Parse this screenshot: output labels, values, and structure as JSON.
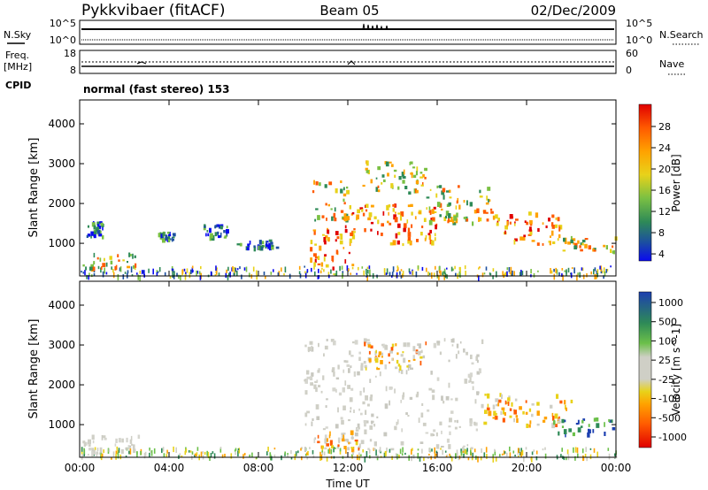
{
  "header": {
    "station": "Pykkvibaer (fitACF)",
    "beam": "Beam 05",
    "date": "02/Dec/2009"
  },
  "noise_panel": {
    "left_label": "N.Sky",
    "left_ticks": [
      "10^5",
      "10^0"
    ],
    "right_ticks": [
      "10^5",
      "10^0"
    ],
    "right_label": "N.Search"
  },
  "freq_panel": {
    "left_label_1": "Freq.",
    "left_label_2": "[MHz]",
    "left_ticks": [
      "18",
      "8"
    ],
    "right_ticks": [
      "60",
      "0"
    ],
    "right_label": "Nave"
  },
  "cpid": {
    "label": "CPID",
    "text": "normal (fast stereo) 153"
  },
  "chart_data": [
    {
      "type": "heatmap",
      "quantity": "Power",
      "ylabel": "Slant Range [km]",
      "xlabel": "",
      "ylim": [
        180,
        4600
      ],
      "yticks": [
        1000,
        2000,
        3000,
        4000
      ],
      "xticks": [
        "00:00",
        "04:00",
        "08:00",
        "12:00",
        "16:00",
        "20:00",
        "00:00"
      ],
      "colorbar": {
        "label": "Power [dB]",
        "ticks": [
          "28",
          "24",
          "20",
          "16",
          "12",
          "8",
          "4"
        ],
        "colors": [
          "#e00000",
          "#ff5a00",
          "#ffa200",
          "#e8d21a",
          "#7ac043",
          "#2e8a57",
          "#1c4fa0",
          "#0a0af0"
        ]
      },
      "regions": [
        {
          "t": [
            0.1,
            2.5
          ],
          "r": [
            400,
            800
          ],
          "level": "medium"
        },
        {
          "t": [
            0.3,
            1.0
          ],
          "r": [
            1200,
            1600
          ],
          "level": "low"
        },
        {
          "t": [
            3.5,
            4.2
          ],
          "r": [
            1100,
            1300
          ],
          "level": "low"
        },
        {
          "t": [
            5.5,
            6.6
          ],
          "r": [
            1150,
            1500
          ],
          "level": "low"
        },
        {
          "t": [
            7.0,
            8.8
          ],
          "r": [
            900,
            1100
          ],
          "level": "low"
        },
        {
          "t": [
            10.3,
            12.2
          ],
          "r": [
            400,
            1500
          ],
          "level": "high"
        },
        {
          "t": [
            10.4,
            12.0
          ],
          "r": [
            1600,
            2600
          ],
          "level": "medium"
        },
        {
          "t": [
            12.0,
            16.0
          ],
          "r": [
            1000,
            2000
          ],
          "level": "high"
        },
        {
          "t": [
            12.5,
            15.5
          ],
          "r": [
            2300,
            3100
          ],
          "level": "medium"
        },
        {
          "t": [
            15.5,
            18.5
          ],
          "r": [
            1500,
            2500
          ],
          "level": "medium"
        },
        {
          "t": [
            18.5,
            21.5
          ],
          "r": [
            1000,
            1800
          ],
          "level": "high"
        },
        {
          "t": [
            21.5,
            24.0
          ],
          "r": [
            800,
            1200
          ],
          "level": "medium"
        }
      ]
    },
    {
      "type": "heatmap",
      "quantity": "Velocity",
      "ylabel": "Slant Range [km]",
      "xlabel": "Time UT",
      "ylim": [
        180,
        4600
      ],
      "yticks": [
        1000,
        2000,
        3000,
        4000
      ],
      "xticks": [
        "00:00",
        "04:00",
        "08:00",
        "12:00",
        "16:00",
        "20:00",
        "00:00"
      ],
      "colorbar": {
        "label": "Velocity [m s^-1]",
        "ticks": [
          "1000",
          "500",
          "100",
          "25",
          "-25",
          "-100",
          "-500",
          "-1000"
        ],
        "colors": [
          "#1c3fb0",
          "#2e8a57",
          "#6cc04a",
          "#cfcfc6",
          "#e8d21a",
          "#ffa200",
          "#ff5a00",
          "#e00000"
        ]
      },
      "regions": [
        {
          "t": [
            0.1,
            3.0
          ],
          "r": [
            300,
            800
          ],
          "level": "small"
        },
        {
          "t": [
            10.0,
            18.0
          ],
          "r": [
            400,
            3200
          ],
          "level": "small"
        },
        {
          "t": [
            12.5,
            15.5
          ],
          "r": [
            2400,
            3100
          ],
          "level": "negative"
        },
        {
          "t": [
            10.5,
            12.5
          ],
          "r": [
            400,
            900
          ],
          "level": "negative"
        },
        {
          "t": [
            18.0,
            22.0
          ],
          "r": [
            1000,
            1800
          ],
          "level": "negative"
        },
        {
          "t": [
            21.0,
            24.0
          ],
          "r": [
            800,
            1200
          ],
          "level": "positive"
        }
      ]
    }
  ]
}
